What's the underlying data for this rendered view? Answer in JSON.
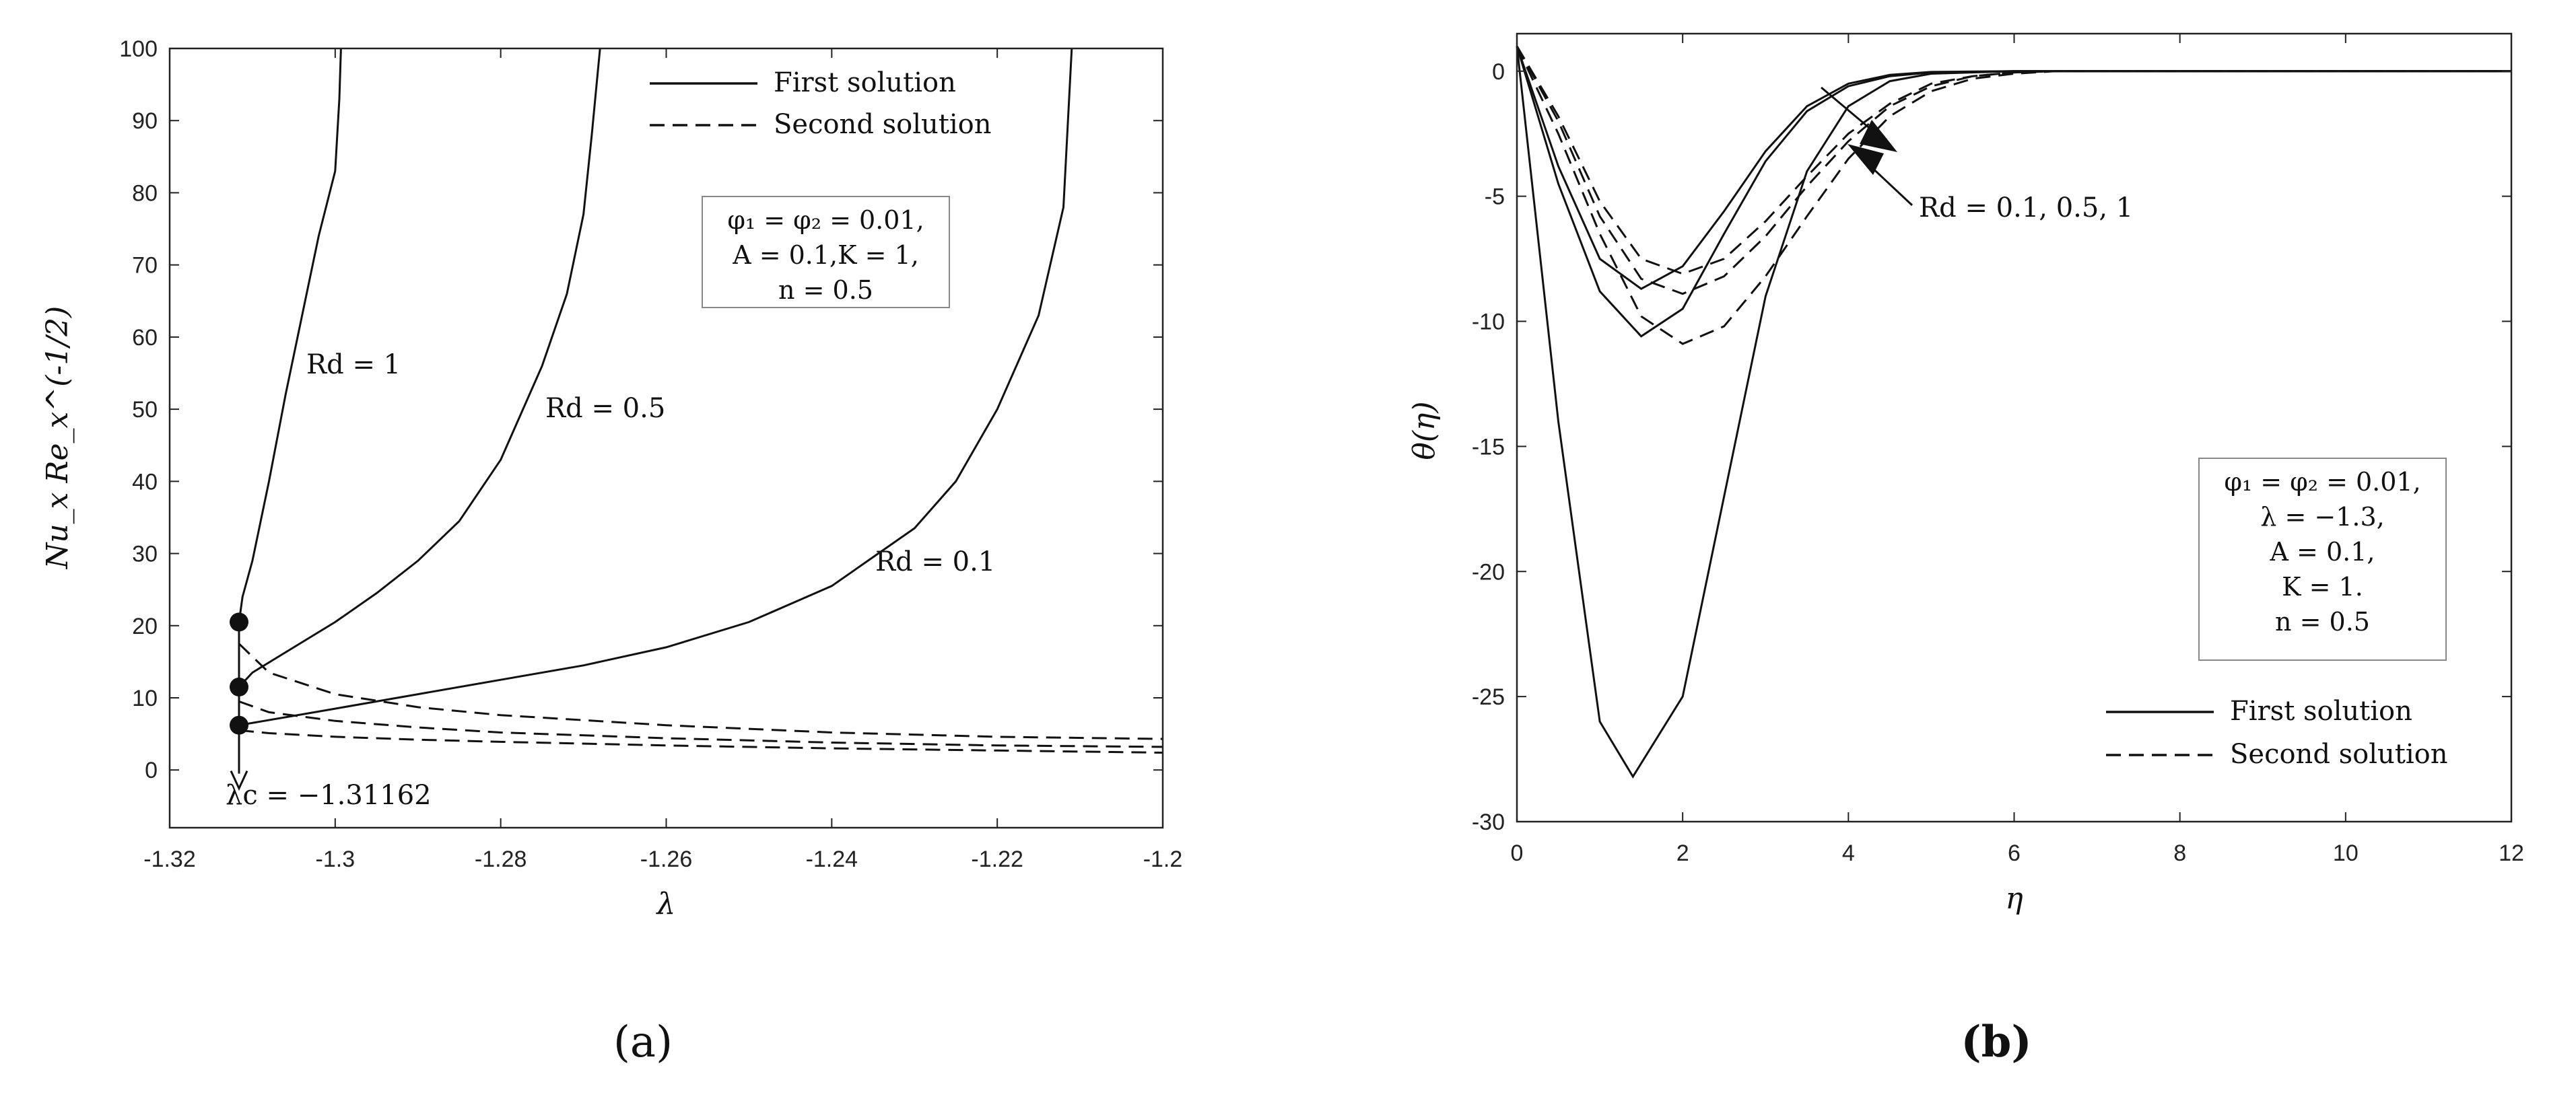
{
  "chart_data": [
    {
      "type": "line",
      "panel": "a",
      "xlabel": "λ",
      "ylabel": "Nu_x Re_x^(-1/2)",
      "xlim": [
        -1.32,
        -1.2
      ],
      "ylim": [
        -8,
        100
      ],
      "xticks": [
        -1.32,
        -1.3,
        -1.28,
        -1.26,
        -1.24,
        -1.22,
        -1.2
      ],
      "xtick_labels": [
        "-1.32",
        "-1.3",
        "-1.28",
        "-1.26",
        "-1.24",
        "-1.22",
        "-1.2"
      ],
      "yticks": [
        0,
        10,
        20,
        30,
        40,
        50,
        60,
        70,
        80,
        90,
        100
      ],
      "ytick_labels": [
        "0",
        "10",
        "20",
        "30",
        "40",
        "50",
        "60",
        "70",
        "80",
        "90",
        "100"
      ],
      "legend": [
        "First solution",
        "Second solution"
      ],
      "info_box": [
        "φ₁ = φ₂ = 0.01,",
        "A = 0.1,K = 1,",
        "n = 0.5"
      ],
      "annotations": [
        "Rd = 1",
        "Rd = 0.5",
        "Rd = 0.1",
        "λc = −1.31162"
      ],
      "critical_lambda": -1.31162,
      "critical_points": [
        {
          "x": -1.31162,
          "y": 20.5
        },
        {
          "x": -1.31162,
          "y": 11.5
        },
        {
          "x": -1.31162,
          "y": 6.2
        }
      ],
      "series": [
        {
          "name": "Rd = 1 (first solution)",
          "style": "solid",
          "x": [
            -1.31162,
            -1.3112,
            -1.31,
            -1.308,
            -1.306,
            -1.304,
            -1.302,
            -1.3,
            -1.2995,
            -1.2993
          ],
          "y": [
            20.5,
            24,
            29,
            40,
            52,
            63,
            74,
            83,
            93,
            100
          ]
        },
        {
          "name": "Rd = 0.5 (first solution)",
          "style": "solid",
          "x": [
            -1.31162,
            -1.31,
            -1.305,
            -1.3,
            -1.295,
            -1.29,
            -1.285,
            -1.28,
            -1.275,
            -1.272,
            -1.27,
            -1.269,
            -1.268
          ],
          "y": [
            11.5,
            13.5,
            17,
            20.5,
            24.5,
            29,
            34.5,
            43,
            56,
            66,
            77,
            88,
            100
          ]
        },
        {
          "name": "Rd = 0.1 (first solution)",
          "style": "solid",
          "x": [
            -1.31162,
            -1.3,
            -1.29,
            -1.28,
            -1.27,
            -1.26,
            -1.25,
            -1.24,
            -1.235,
            -1.23,
            -1.225,
            -1.22,
            -1.215,
            -1.212,
            -1.211
          ],
          "y": [
            6.2,
            8.5,
            10.5,
            12.5,
            14.5,
            17,
            20.5,
            25.5,
            29.5,
            33.5,
            40,
            50,
            63,
            78,
            100
          ]
        },
        {
          "name": "Rd = 1 (second solution)",
          "style": "dashed",
          "x": [
            -1.31162,
            -1.308,
            -1.3,
            -1.29,
            -1.28,
            -1.26,
            -1.24,
            -1.22,
            -1.2
          ],
          "y": [
            17.5,
            13.5,
            10.5,
            8.7,
            7.6,
            6.2,
            5.2,
            4.6,
            4.3
          ]
        },
        {
          "name": "Rd = 0.5 (second solution)",
          "style": "dashed",
          "x": [
            -1.31162,
            -1.308,
            -1.3,
            -1.29,
            -1.28,
            -1.26,
            -1.24,
            -1.22,
            -1.2
          ],
          "y": [
            9.5,
            8.0,
            6.8,
            5.9,
            5.2,
            4.4,
            3.8,
            3.4,
            3.2
          ]
        },
        {
          "name": "Rd = 0.1 (second solution)",
          "style": "dashed",
          "x": [
            -1.31162,
            -1.308,
            -1.3,
            -1.29,
            -1.28,
            -1.26,
            -1.24,
            -1.22,
            -1.2
          ],
          "y": [
            5.5,
            5.1,
            4.6,
            4.2,
            3.9,
            3.4,
            3.0,
            2.7,
            2.4
          ]
        }
      ]
    },
    {
      "type": "line",
      "panel": "b",
      "xlabel": "η",
      "ylabel": "θ(η)",
      "xlim": [
        0,
        12
      ],
      "ylim": [
        -30,
        1.5
      ],
      "xticks": [
        0,
        2,
        4,
        6,
        8,
        10,
        12
      ],
      "xtick_labels": [
        "0",
        "2",
        "4",
        "6",
        "8",
        "10",
        "12"
      ],
      "yticks": [
        0,
        -5,
        -10,
        -15,
        -20,
        -25,
        -30
      ],
      "ytick_labels": [
        "0",
        "-5",
        "-10",
        "-15",
        "-20",
        "-25",
        "-30"
      ],
      "legend": [
        "First solution",
        "Second solution"
      ],
      "info_box": [
        "φ₁ = φ₂ = 0.01,",
        "λ = −1.3,",
        "A = 0.1,",
        "K = 1.",
        "n = 0.5"
      ],
      "annotations": [
        "Rd = 0.1, 0.5, 1"
      ],
      "series": [
        {
          "name": "Rd = 0.1 (first solution)",
          "style": "solid",
          "x": [
            0,
            0.5,
            1,
            1.4,
            2,
            2.5,
            3,
            3.5,
            4,
            4.5,
            5,
            6,
            12
          ],
          "y": [
            1,
            -14,
            -26,
            -28.2,
            -25,
            -17,
            -9,
            -4,
            -1.4,
            -0.4,
            -0.1,
            0,
            0
          ]
        },
        {
          "name": "Rd = 0.5 (first solution)",
          "style": "solid",
          "x": [
            0,
            0.5,
            1,
            1.5,
            2,
            2.5,
            3,
            3.5,
            4,
            4.5,
            5,
            6,
            12
          ],
          "y": [
            1,
            -4.5,
            -8.8,
            -10.6,
            -9.5,
            -6.5,
            -3.6,
            -1.6,
            -0.6,
            -0.2,
            -0.05,
            0,
            0
          ]
        },
        {
          "name": "Rd = 1 (first solution)",
          "style": "solid",
          "x": [
            0,
            0.5,
            1,
            1.5,
            2,
            2.5,
            3,
            3.5,
            4,
            4.5,
            5,
            6,
            12
          ],
          "y": [
            1,
            -3.8,
            -7.5,
            -8.7,
            -7.8,
            -5.6,
            -3.2,
            -1.4,
            -0.5,
            -0.15,
            -0.03,
            0,
            0
          ]
        },
        {
          "name": "Rd = 0.1 (second solution)",
          "style": "dashed",
          "x": [
            0,
            0.5,
            1,
            1.5,
            2,
            2.5,
            3,
            3.5,
            4,
            4.5,
            5,
            5.5,
            6,
            6.5,
            7,
            12
          ],
          "y": [
            1,
            -2.5,
            -6.5,
            -9.8,
            -10.9,
            -10.2,
            -8.2,
            -5.8,
            -3.5,
            -1.8,
            -0.8,
            -0.3,
            -0.1,
            0,
            0,
            0
          ]
        },
        {
          "name": "Rd = 0.5 (second solution)",
          "style": "dashed",
          "x": [
            0,
            0.5,
            1,
            1.5,
            2,
            2.5,
            3,
            3.5,
            4,
            4.5,
            5,
            5.5,
            6,
            6.5,
            7,
            12
          ],
          "y": [
            1,
            -2,
            -5.8,
            -8.3,
            -8.9,
            -8.2,
            -6.6,
            -4.6,
            -2.8,
            -1.4,
            -0.6,
            -0.2,
            -0.05,
            0,
            0,
            0
          ]
        },
        {
          "name": "Rd = 1 (second solution)",
          "style": "dashed",
          "x": [
            0,
            0.5,
            1,
            1.5,
            2,
            2.5,
            3,
            3.5,
            4,
            4.5,
            5,
            5.5,
            6,
            6.5,
            7,
            12
          ],
          "y": [
            1,
            -1.8,
            -5.2,
            -7.5,
            -8.1,
            -7.5,
            -6.0,
            -4.2,
            -2.5,
            -1.3,
            -0.5,
            -0.2,
            -0.05,
            0,
            0,
            0
          ]
        }
      ]
    }
  ],
  "panel_labels": {
    "a": "(a)",
    "b": "(b)"
  }
}
